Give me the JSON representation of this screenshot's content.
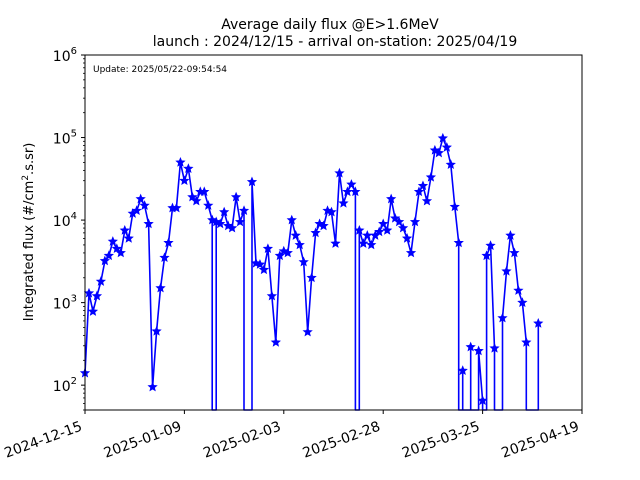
{
  "chart_data": {
    "type": "line",
    "title_line1": "Average daily flux @E>1.6MeV",
    "title_line2": "launch : 2024/12/15 - arrival on-station: 2025/04/19",
    "ylabel_main": "Integrated flux (#/cm",
    "ylabel_sup": "2",
    "ylabel_rest": ".s.sr)",
    "xlabel": "",
    "annotation": "Update: 2025/05/22-09:54:54",
    "y_scale": "log",
    "ylim": [
      50,
      1000000
    ],
    "xlim": [
      "2024-12-15",
      "2025-04-19"
    ],
    "x_ticks": [
      "2024-12-15",
      "2025-01-09",
      "2025-02-03",
      "2025-02-28",
      "2025-03-25",
      "2025-04-19"
    ],
    "y_ticks": [
      {
        "value": 100,
        "base": "10",
        "exp": "2"
      },
      {
        "value": 1000,
        "base": "10",
        "exp": "3"
      },
      {
        "value": 10000,
        "base": "10",
        "exp": "4"
      },
      {
        "value": 100000,
        "base": "10",
        "exp": "5"
      },
      {
        "value": 1000000,
        "base": "10",
        "exp": "6"
      }
    ],
    "line_color": "#0000ff",
    "marker": "star",
    "series": [
      {
        "points": [
          [
            "2024-12-15",
            140
          ],
          [
            "2024-12-16",
            1300
          ],
          [
            "2024-12-17",
            780
          ],
          [
            "2024-12-18",
            1200
          ],
          [
            "2024-12-19",
            1800
          ],
          [
            "2024-12-20",
            3200
          ],
          [
            "2024-12-21",
            3700
          ],
          [
            "2024-12-22",
            5500
          ],
          [
            "2024-12-23",
            4500
          ],
          [
            "2024-12-24",
            4000
          ],
          [
            "2024-12-25",
            7500
          ],
          [
            "2024-12-26",
            6000
          ],
          [
            "2024-12-27",
            12000
          ],
          [
            "2024-12-28",
            13000
          ],
          [
            "2024-12-29",
            18000
          ],
          [
            "2024-12-30",
            15000
          ],
          [
            "2024-12-31",
            9000
          ],
          [
            "2025-01-01",
            95
          ],
          [
            "2025-01-02",
            450
          ],
          [
            "2025-01-03",
            1500
          ],
          [
            "2025-01-04",
            3500
          ],
          [
            "2025-01-05",
            5300
          ],
          [
            "2025-01-06",
            14000
          ],
          [
            "2025-01-07",
            14000
          ],
          [
            "2025-01-08",
            50000
          ],
          [
            "2025-01-09",
            30000
          ],
          [
            "2025-01-10",
            42000
          ],
          [
            "2025-01-11",
            19000
          ],
          [
            "2025-01-12",
            17000
          ],
          [
            "2025-01-13",
            22000
          ],
          [
            "2025-01-14",
            22000
          ],
          [
            "2025-01-15",
            15000
          ],
          [
            "2025-01-16",
            10000
          ],
          [
            "2025-01-16",
            50
          ],
          [
            "2025-01-17",
            50
          ],
          [
            "2025-01-17",
            9500
          ],
          [
            "2025-01-18",
            9000
          ],
          [
            "2025-01-19",
            12500
          ],
          [
            "2025-01-20",
            8500
          ],
          [
            "2025-01-21",
            8000
          ],
          [
            "2025-01-22",
            19000
          ],
          [
            "2025-01-23",
            9500
          ],
          [
            "2025-01-24",
            13000
          ],
          [
            "2025-01-24",
            50
          ],
          [
            "2025-01-26",
            50
          ],
          [
            "2025-01-26",
            29000
          ],
          [
            "2025-01-27",
            3000
          ],
          [
            "2025-01-28",
            2900
          ],
          [
            "2025-01-29",
            2500
          ],
          [
            "2025-01-30",
            4500
          ],
          [
            "2025-01-31",
            1200
          ],
          [
            "2025-02-01",
            330
          ],
          [
            "2025-02-02",
            3700
          ],
          [
            "2025-02-03",
            4200
          ],
          [
            "2025-02-04",
            4000
          ],
          [
            "2025-02-05",
            10000
          ],
          [
            "2025-02-06",
            6500
          ],
          [
            "2025-02-07",
            5000
          ],
          [
            "2025-02-08",
            3100
          ],
          [
            "2025-02-09",
            440
          ],
          [
            "2025-02-10",
            2000
          ],
          [
            "2025-02-11",
            7000
          ],
          [
            "2025-02-12",
            9000
          ],
          [
            "2025-02-13",
            8500
          ],
          [
            "2025-02-14",
            13000
          ],
          [
            "2025-02-15",
            12500
          ],
          [
            "2025-02-16",
            5200
          ],
          [
            "2025-02-17",
            37000
          ],
          [
            "2025-02-18",
            16000
          ],
          [
            "2025-02-19",
            22000
          ],
          [
            "2025-02-20",
            27000
          ],
          [
            "2025-02-21",
            22000
          ],
          [
            "2025-02-21",
            50
          ],
          [
            "2025-02-22",
            50
          ],
          [
            "2025-02-22",
            7500
          ],
          [
            "2025-02-23",
            5200
          ],
          [
            "2025-02-24",
            6500
          ],
          [
            "2025-02-25",
            5000
          ],
          [
            "2025-02-26",
            6500
          ],
          [
            "2025-02-27",
            7200
          ],
          [
            "2025-02-28",
            9000
          ],
          [
            "2025-03-01",
            7500
          ],
          [
            "2025-03-02",
            18000
          ],
          [
            "2025-03-03",
            10500
          ],
          [
            "2025-03-04",
            9500
          ],
          [
            "2025-03-05",
            8000
          ],
          [
            "2025-03-06",
            6000
          ],
          [
            "2025-03-07",
            4000
          ],
          [
            "2025-03-08",
            9500
          ],
          [
            "2025-03-09",
            22000
          ],
          [
            "2025-03-10",
            26000
          ],
          [
            "2025-03-11",
            17000
          ],
          [
            "2025-03-12",
            33000
          ],
          [
            "2025-03-13",
            70000
          ],
          [
            "2025-03-14",
            65000
          ],
          [
            "2025-03-15",
            98000
          ],
          [
            "2025-03-16",
            76000
          ],
          [
            "2025-03-17",
            47000
          ],
          [
            "2025-03-18",
            14500
          ],
          [
            "2025-03-19",
            5300
          ],
          [
            "2025-03-19",
            50
          ],
          [
            "2025-03-20",
            50
          ],
          [
            "2025-03-20",
            150
          ],
          [
            "2025-03-20",
            50
          ],
          [
            "2025-03-22",
            50
          ],
          [
            "2025-03-22",
            290
          ],
          [
            "2025-03-22",
            50
          ],
          [
            "2025-03-24",
            50
          ],
          [
            "2025-03-24",
            260
          ],
          [
            "2025-03-25",
            65
          ],
          [
            "2025-03-25",
            50
          ],
          [
            "2025-03-26",
            50
          ],
          [
            "2025-03-26",
            3700
          ],
          [
            "2025-03-27",
            4900
          ],
          [
            "2025-03-28",
            280
          ],
          [
            "2025-03-28",
            50
          ],
          [
            "2025-03-30",
            50
          ],
          [
            "2025-03-30",
            650
          ],
          [
            "2025-03-31",
            2400
          ],
          [
            "2025-04-01",
            6500
          ],
          [
            "2025-04-02",
            4000
          ],
          [
            "2025-04-03",
            1400
          ],
          [
            "2025-04-04",
            1000
          ],
          [
            "2025-04-05",
            330
          ],
          [
            "2025-04-05",
            50
          ],
          [
            "2025-04-08",
            50
          ],
          [
            "2025-04-08",
            560
          ],
          [
            "2025-04-08",
            50
          ]
        ],
        "markers": [
          [
            "2024-12-15",
            140
          ],
          [
            "2024-12-16",
            1300
          ],
          [
            "2024-12-17",
            780
          ],
          [
            "2024-12-18",
            1200
          ],
          [
            "2024-12-19",
            1800
          ],
          [
            "2024-12-20",
            3200
          ],
          [
            "2024-12-21",
            3700
          ],
          [
            "2024-12-22",
            5500
          ],
          [
            "2024-12-23",
            4500
          ],
          [
            "2024-12-24",
            4000
          ],
          [
            "2024-12-25",
            7500
          ],
          [
            "2024-12-26",
            6000
          ],
          [
            "2024-12-27",
            12000
          ],
          [
            "2024-12-28",
            13000
          ],
          [
            "2024-12-29",
            18000
          ],
          [
            "2024-12-30",
            15000
          ],
          [
            "2024-12-31",
            9000
          ],
          [
            "2025-01-01",
            95
          ],
          [
            "2025-01-02",
            450
          ],
          [
            "2025-01-03",
            1500
          ],
          [
            "2025-01-04",
            3500
          ],
          [
            "2025-01-05",
            5300
          ],
          [
            "2025-01-06",
            14000
          ],
          [
            "2025-01-07",
            14000
          ],
          [
            "2025-01-08",
            50000
          ],
          [
            "2025-01-09",
            30000
          ],
          [
            "2025-01-10",
            42000
          ],
          [
            "2025-01-11",
            19000
          ],
          [
            "2025-01-12",
            17000
          ],
          [
            "2025-01-13",
            22000
          ],
          [
            "2025-01-14",
            22000
          ],
          [
            "2025-01-15",
            15000
          ],
          [
            "2025-01-16",
            10000
          ],
          [
            "2025-01-17",
            9500
          ],
          [
            "2025-01-18",
            9000
          ],
          [
            "2025-01-19",
            12500
          ],
          [
            "2025-01-20",
            8500
          ],
          [
            "2025-01-21",
            8000
          ],
          [
            "2025-01-22",
            19000
          ],
          [
            "2025-01-23",
            9500
          ],
          [
            "2025-01-24",
            13000
          ],
          [
            "2025-01-26",
            29000
          ],
          [
            "2025-01-27",
            3000
          ],
          [
            "2025-01-28",
            2900
          ],
          [
            "2025-01-29",
            2500
          ],
          [
            "2025-01-30",
            4500
          ],
          [
            "2025-01-31",
            1200
          ],
          [
            "2025-02-01",
            330
          ],
          [
            "2025-02-02",
            3700
          ],
          [
            "2025-02-03",
            4200
          ],
          [
            "2025-02-04",
            4000
          ],
          [
            "2025-02-05",
            10000
          ],
          [
            "2025-02-06",
            6500
          ],
          [
            "2025-02-07",
            5000
          ],
          [
            "2025-02-08",
            3100
          ],
          [
            "2025-02-09",
            440
          ],
          [
            "2025-02-10",
            2000
          ],
          [
            "2025-02-11",
            7000
          ],
          [
            "2025-02-12",
            9000
          ],
          [
            "2025-02-13",
            8500
          ],
          [
            "2025-02-14",
            13000
          ],
          [
            "2025-02-15",
            12500
          ],
          [
            "2025-02-16",
            5200
          ],
          [
            "2025-02-17",
            37000
          ],
          [
            "2025-02-18",
            16000
          ],
          [
            "2025-02-19",
            22000
          ],
          [
            "2025-02-20",
            27000
          ],
          [
            "2025-02-21",
            22000
          ],
          [
            "2025-02-22",
            7500
          ],
          [
            "2025-02-23",
            5200
          ],
          [
            "2025-02-24",
            6500
          ],
          [
            "2025-02-25",
            5000
          ],
          [
            "2025-02-26",
            6500
          ],
          [
            "2025-02-27",
            7200
          ],
          [
            "2025-02-28",
            9000
          ],
          [
            "2025-03-01",
            7500
          ],
          [
            "2025-03-02",
            18000
          ],
          [
            "2025-03-03",
            10500
          ],
          [
            "2025-03-04",
            9500
          ],
          [
            "2025-03-05",
            8000
          ],
          [
            "2025-03-06",
            6000
          ],
          [
            "2025-03-07",
            4000
          ],
          [
            "2025-03-08",
            9500
          ],
          [
            "2025-03-09",
            22000
          ],
          [
            "2025-03-10",
            26000
          ],
          [
            "2025-03-11",
            17000
          ],
          [
            "2025-03-12",
            33000
          ],
          [
            "2025-03-13",
            70000
          ],
          [
            "2025-03-14",
            65000
          ],
          [
            "2025-03-15",
            98000
          ],
          [
            "2025-03-16",
            76000
          ],
          [
            "2025-03-17",
            47000
          ],
          [
            "2025-03-18",
            14500
          ],
          [
            "2025-03-19",
            5300
          ],
          [
            "2025-03-20",
            150
          ],
          [
            "2025-03-22",
            290
          ],
          [
            "2025-03-24",
            260
          ],
          [
            "2025-03-25",
            65
          ],
          [
            "2025-03-26",
            3700
          ],
          [
            "2025-03-27",
            4900
          ],
          [
            "2025-03-28",
            280
          ],
          [
            "2025-03-30",
            650
          ],
          [
            "2025-03-31",
            2400
          ],
          [
            "2025-04-01",
            6500
          ],
          [
            "2025-04-02",
            4000
          ],
          [
            "2025-04-03",
            1400
          ],
          [
            "2025-04-04",
            1000
          ],
          [
            "2025-04-05",
            330
          ],
          [
            "2025-04-08",
            560
          ]
        ]
      }
    ]
  }
}
